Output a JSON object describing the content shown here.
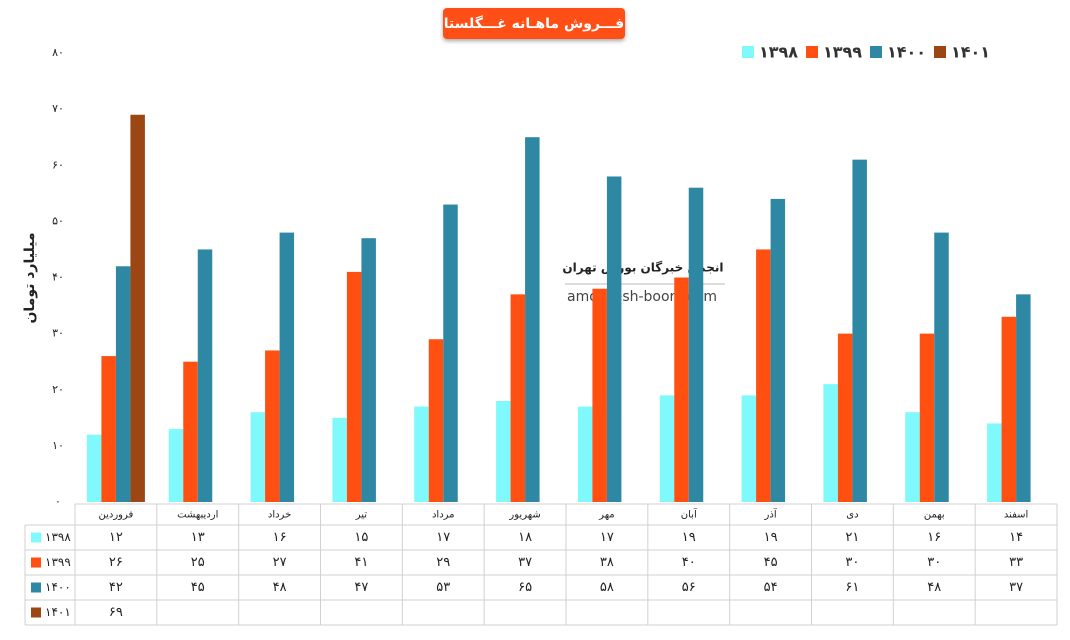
{
  "chart_data": {
    "type": "bar",
    "title": "فـــروش ماهـانه غـــگلستا",
    "y_label": "میلیارد تومان",
    "annotations": [
      "انجمن خبرگان بورس تهران",
      "amoozesh-boors.com"
    ],
    "categories": [
      "فروردین",
      "اردیبهشت",
      "خرداد",
      "تیر",
      "مرداد",
      "شهریور",
      "مهر",
      "آبان",
      "آذر",
      "دی",
      "بهمن",
      "اسفند"
    ],
    "series": [
      {
        "name": "۱۳۹۸",
        "color": "#80f9fc",
        "values": [
          12,
          13,
          16,
          15,
          17,
          18,
          17,
          19,
          19,
          21,
          16,
          14
        ],
        "value_labels": [
          "۱۲",
          "۱۳",
          "۱۶",
          "۱۵",
          "۱۷",
          "۱۸",
          "۱۷",
          "۱۹",
          "۱۹",
          "۲۱",
          "۱۶",
          "۱۴"
        ]
      },
      {
        "name": "۱۳۹۹",
        "color": "#ff5012",
        "values": [
          26,
          25,
          27,
          41,
          29,
          37,
          38,
          40,
          45,
          30,
          30,
          33
        ],
        "value_labels": [
          "۲۶",
          "۲۵",
          "۲۷",
          "۴۱",
          "۲۹",
          "۳۷",
          "۳۸",
          "۴۰",
          "۴۵",
          "۳۰",
          "۳۰",
          "۳۳"
        ]
      },
      {
        "name": "۱۴۰۰",
        "color": "#2e88a4",
        "values": [
          42,
          45,
          48,
          47,
          53,
          65,
          58,
          56,
          54,
          61,
          48,
          37
        ],
        "value_labels": [
          "۴۲",
          "۴۵",
          "۴۸",
          "۴۷",
          "۵۳",
          "۶۵",
          "۵۸",
          "۵۶",
          "۵۴",
          "۶۱",
          "۴۸",
          "۳۷"
        ]
      },
      {
        "name": "۱۴۰۱",
        "color": "#9c4713",
        "values": [
          69,
          null,
          null,
          null,
          null,
          null,
          null,
          null,
          null,
          null,
          null,
          null
        ],
        "value_labels": [
          "۶۹",
          null,
          null,
          null,
          null,
          null,
          null,
          null,
          null,
          null,
          null,
          null
        ]
      }
    ],
    "ylim": [
      0,
      80
    ],
    "yticks": [
      {
        "value": 0,
        "label": "۰"
      },
      {
        "value": 10,
        "label": "۱۰"
      },
      {
        "value": 20,
        "label": "۲۰"
      },
      {
        "value": 30,
        "label": "۳۰"
      },
      {
        "value": 40,
        "label": "۴۰"
      },
      {
        "value": 50,
        "label": "۵۰"
      },
      {
        "value": 60,
        "label": "۶۰"
      },
      {
        "value": 70,
        "label": "۷۰"
      },
      {
        "value": 80,
        "label": "۸۰"
      }
    ],
    "grid": false,
    "legend": "top-right"
  }
}
